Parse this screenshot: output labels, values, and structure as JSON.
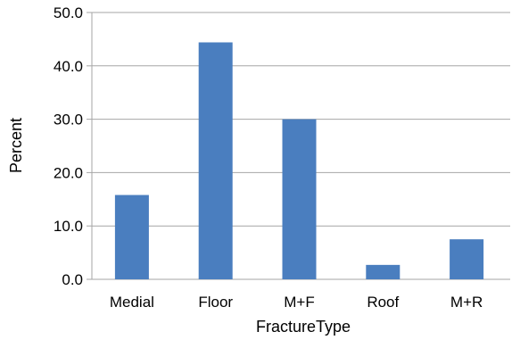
{
  "chart_data": {
    "type": "bar",
    "categories": [
      "Medial",
      "Floor",
      "M+F",
      "Roof",
      "M+R"
    ],
    "values": [
      15.8,
      44.4,
      30.0,
      2.7,
      7.5
    ],
    "title": "",
    "xlabel": "FractureType",
    "ylabel": "Percent",
    "ylim": [
      0,
      50
    ],
    "yticks": [
      "0.0",
      "10.0",
      "20.0",
      "30.0",
      "40.0",
      "50.0"
    ],
    "grid": true,
    "legend": "none",
    "bar_color": "#4a7ebf",
    "grid_color": "#a6a6a6"
  }
}
